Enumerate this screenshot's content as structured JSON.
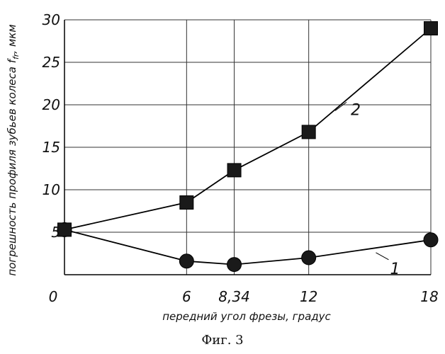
{
  "chart_data": {
    "type": "line",
    "xlabel": "передний угол фрезы, градус",
    "ylabel": "погрешность профиля зубьев колеса f",
    "ylabel_sub": "fr",
    "ylabel_unit": ", мкм",
    "xlim": [
      0,
      18
    ],
    "ylim": [
      0,
      30
    ],
    "x_ticks": [
      0,
      6,
      8.34,
      12,
      18
    ],
    "x_tick_labels": [
      "0",
      "6",
      "8,34",
      "12",
      "18"
    ],
    "y_ticks": [
      5,
      10,
      15,
      20,
      25,
      30
    ],
    "y_tick_labels": [
      "5",
      "10",
      "15",
      "20",
      "25",
      "30"
    ],
    "grid": true,
    "series": [
      {
        "name": "1",
        "marker": "circle",
        "x": [
          0,
          6,
          8.34,
          12,
          18
        ],
        "y": [
          5.3,
          1.6,
          1.2,
          2.0,
          4.1
        ]
      },
      {
        "name": "2",
        "marker": "square",
        "x": [
          0,
          6,
          8.34,
          12,
          18
        ],
        "y": [
          5.3,
          8.5,
          12.3,
          16.8,
          29.0
        ]
      }
    ],
    "caption": "Фиг. 3"
  }
}
